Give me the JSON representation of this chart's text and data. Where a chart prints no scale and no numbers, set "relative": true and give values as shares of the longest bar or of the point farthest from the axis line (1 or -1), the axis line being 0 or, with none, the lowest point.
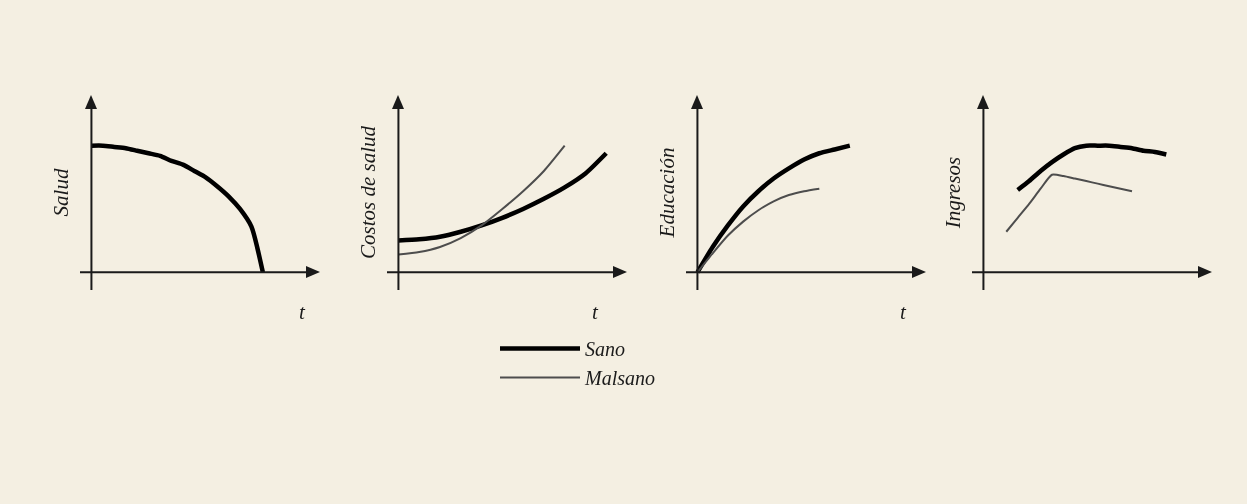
{
  "chart_data": [
    {
      "type": "line",
      "relative": true,
      "ylabel": "Salud",
      "xlabel": "t",
      "categories": [
        null,
        null,
        null,
        null,
        null,
        null,
        null,
        null,
        null,
        null,
        null,
        null,
        null,
        null,
        null,
        null,
        null,
        null,
        null,
        null
      ],
      "series": [
        {
          "color": "#000000",
          "values": [
            1,
            1,
            0.99,
            0.98,
            0.96,
            0.94,
            0.92,
            0.88,
            0.85,
            0.8,
            0.75,
            0.68,
            0.6,
            0.5,
            0.36,
            0,
            null,
            null,
            null,
            null
          ]
        }
      ]
    },
    {
      "type": "line",
      "relative": true,
      "ylabel": "Costos de salud",
      "xlabel": "t",
      "legend": "bottom",
      "categories": [
        null,
        null,
        null,
        null,
        null,
        null,
        null,
        null,
        null,
        null,
        null
      ],
      "series": [
        {
          "name": "Sano",
          "color": "#000000",
          "values": [
            0.25,
            0.26,
            0.28,
            0.32,
            0.37,
            0.43,
            0.5,
            0.58,
            0.67,
            0.78,
            0.94
          ]
        },
        {
          "name": "Malsano",
          "color": "#4d4d4d",
          "values": [
            0.14,
            0.16,
            0.2,
            0.27,
            0.37,
            0.5,
            0.64,
            0.8,
            1,
            null,
            null
          ]
        }
      ]
    },
    {
      "type": "line",
      "relative": true,
      "ylabel": "Educación",
      "xlabel": "t",
      "categories": [
        null,
        null,
        null,
        null,
        null,
        null,
        null,
        null,
        null,
        null,
        null,
        null,
        null,
        null,
        null
      ],
      "series": [
        {
          "color": "#000000",
          "values": [
            0,
            0.2,
            0.37,
            0.52,
            0.64,
            0.74,
            0.82,
            0.89,
            0.94,
            0.97,
            1,
            null,
            null,
            null,
            null
          ]
        },
        {
          "color": "#4d4d4d",
          "values": [
            0,
            0.15,
            0.29,
            0.4,
            0.49,
            0.56,
            0.61,
            0.64,
            0.66,
            null,
            null,
            null,
            null,
            null,
            null
          ]
        }
      ]
    },
    {
      "type": "line",
      "relative": true,
      "ylabel": "Ingresos",
      "categories": [
        null,
        null,
        null,
        null,
        null,
        null,
        null,
        null,
        null,
        null,
        null,
        null,
        null,
        null,
        null,
        null,
        null,
        null,
        null,
        null
      ],
      "series": [
        {
          "color": "#000000",
          "values": [
            null,
            null,
            null,
            0.65,
            0.72,
            0.8,
            0.87,
            0.93,
            0.98,
            1,
            1,
            1,
            0.99,
            0.98,
            0.96,
            0.95,
            0.93,
            null,
            null,
            null
          ]
        },
        {
          "color": "#4d4d4d",
          "values": [
            null,
            null,
            0.32,
            0.43,
            0.54,
            0.66,
            0.77,
            0.76,
            0.74,
            0.72,
            0.7,
            0.68,
            0.66,
            0.64,
            null,
            null,
            null,
            null,
            null,
            null
          ]
        }
      ]
    }
  ]
}
